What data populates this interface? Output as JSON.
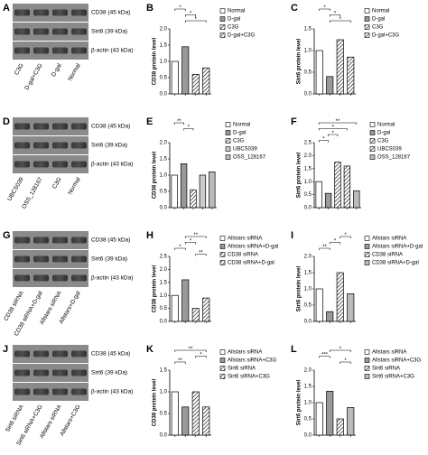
{
  "blots": [
    {
      "panel": "A",
      "bands": [
        "CD38 (45 kDa)",
        "Sirt6 (39 kDa)",
        "β-actin (43 kDa)"
      ],
      "lanes": [
        "C3G",
        "D-gal+C3G",
        "D-gal",
        "Normal"
      ]
    },
    {
      "panel": "D",
      "bands": [
        "CD38 (45 kDa)",
        "Sirt6 (39 kDa)",
        "β-actin (43 kDa)"
      ],
      "lanes": [
        "UBCS039",
        "OSS_128167",
        "C3G",
        "Normal"
      ]
    },
    {
      "panel": "G",
      "bands": [
        "CD38 (45 kDa)",
        "Sirt6 (39 kDa)",
        "β-actin (43 kDa)"
      ],
      "lanes": [
        "CD38 siRNA",
        "CD38 siRNA+D-gal",
        "Allstars siRNA",
        "Allstars+D-gal"
      ]
    },
    {
      "panel": "J",
      "bands": [
        "CD38 (45 kDa)",
        "Sirt6 (39 kDa)",
        "β-actin (43 kDa)"
      ],
      "lanes": [
        "Sirt6 siRNA",
        "Sirt6 siRNA+C3G",
        "Allstars siRNA",
        "Allstars+C3G"
      ]
    }
  ],
  "chart_data": [
    {
      "type": "bar",
      "panel": "B",
      "y_label": "CD38 protein level",
      "ylim": [
        0,
        2
      ],
      "yticks": [
        {
          "value": 0,
          "label": "0.0"
        },
        0.5,
        {
          "value": 1,
          "label": "1.0"
        },
        1.5,
        {
          "value": 2,
          "label": "2.0"
        }
      ],
      "series": [
        {
          "name": "Normal",
          "color": "#ffffff",
          "pattern": "none",
          "values": [
            1.0
          ]
        },
        {
          "name": "D-gal",
          "color": "#999999",
          "pattern": "none",
          "values": [
            1.45
          ]
        },
        {
          "name": "C3G",
          "color": "#ffffff",
          "pattern": "hatch",
          "values": [
            0.6
          ]
        },
        {
          "name": "D-gal+C3G",
          "color": "#ffffff",
          "pattern": "hatch",
          "values": [
            0.8
          ]
        }
      ],
      "significance": [
        {
          "from": 0,
          "to": 1,
          "label": "*"
        },
        {
          "from": 1,
          "to": 2,
          "label": "*"
        },
        {
          "from": 1,
          "to": 3,
          "label": "*"
        }
      ]
    },
    {
      "type": "bar",
      "panel": "C",
      "y_label": "Sirt6 protein level",
      "ylim": [
        0,
        1.5
      ],
      "yticks": [
        {
          "value": 0,
          "label": "0.0"
        },
        0.5,
        {
          "value": 1,
          "label": "1.0"
        },
        1.5
      ],
      "series": [
        {
          "name": "Normal",
          "color": "#ffffff",
          "pattern": "none",
          "values": [
            1.0
          ]
        },
        {
          "name": "D-gal",
          "color": "#999999",
          "pattern": "none",
          "values": [
            0.4
          ]
        },
        {
          "name": "C3G",
          "color": "#ffffff",
          "pattern": "hatch",
          "values": [
            1.25
          ]
        },
        {
          "name": "D-gal+C3G",
          "color": "#ffffff",
          "pattern": "hatch",
          "values": [
            0.85
          ]
        }
      ],
      "significance": [
        {
          "from": 0,
          "to": 1,
          "label": "*"
        },
        {
          "from": 1,
          "to": 2,
          "label": "*"
        },
        {
          "from": 1,
          "to": 3,
          "label": "*"
        }
      ]
    },
    {
      "type": "bar",
      "panel": "E",
      "y_label": "CD38 protein level",
      "ylim": [
        0,
        2
      ],
      "yticks": [
        {
          "value": 0,
          "label": "0.0"
        },
        0.5,
        {
          "value": 1,
          "label": "1.0"
        },
        1.5,
        {
          "value": 2,
          "label": "2.0"
        }
      ],
      "series": [
        {
          "name": "Normal",
          "color": "#ffffff",
          "pattern": "none",
          "values": [
            1.0
          ]
        },
        {
          "name": "D-gal",
          "color": "#999999",
          "pattern": "none",
          "values": [
            1.35
          ]
        },
        {
          "name": "C3G",
          "color": "#ffffff",
          "pattern": "hatch",
          "values": [
            0.55
          ]
        },
        {
          "name": "UBCS039",
          "color": "#cccccc",
          "pattern": "none",
          "values": [
            1.0
          ]
        },
        {
          "name": "OSS_128167",
          "color": "#bbbbbb",
          "pattern": "none",
          "values": [
            1.1
          ]
        }
      ],
      "significance": [
        {
          "from": 0,
          "to": 1,
          "label": "**"
        },
        {
          "from": 1,
          "to": 2,
          "label": "*"
        }
      ]
    },
    {
      "type": "bar",
      "panel": "F",
      "y_label": "Sirt6 protein level",
      "ylim": [
        0,
        2.5
      ],
      "yticks": [
        {
          "value": 0,
          "label": "0.0"
        },
        0.5,
        {
          "value": 1,
          "label": "1.0"
        },
        1.5,
        {
          "value": 2,
          "label": "2.0"
        },
        2.5
      ],
      "series": [
        {
          "name": "Normal",
          "color": "#ffffff",
          "pattern": "none",
          "values": [
            1.0
          ]
        },
        {
          "name": "D-gal",
          "color": "#999999",
          "pattern": "none",
          "values": [
            0.55
          ]
        },
        {
          "name": "C3G",
          "color": "#ffffff",
          "pattern": "hatch",
          "values": [
            1.75
          ]
        },
        {
          "name": "UBCS039",
          "color": "#ffffff",
          "pattern": "hatch",
          "values": [
            1.6
          ]
        },
        {
          "name": "OSS_128167",
          "color": "#bbbbbb",
          "pattern": "none",
          "values": [
            0.65
          ]
        }
      ],
      "significance": [
        {
          "from": 0,
          "to": 4,
          "label": "**"
        },
        {
          "from": 0,
          "to": 3,
          "label": "*"
        },
        {
          "from": 1,
          "to": 2,
          "label": "*"
        },
        {
          "from": 0,
          "to": 1,
          "label": "*"
        }
      ]
    },
    {
      "type": "bar",
      "panel": "H",
      "y_label": "CD38 protein level",
      "ylim": [
        0,
        2.5
      ],
      "yticks": [
        {
          "value": 0,
          "label": "0.0"
        },
        0.5,
        {
          "value": 1,
          "label": "1.0"
        },
        1.5,
        {
          "value": 2,
          "label": "2.0"
        },
        2.5
      ],
      "series": [
        {
          "name": "Allstars siRNA",
          "color": "#ffffff",
          "pattern": "none",
          "values": [
            1.0
          ]
        },
        {
          "name": "Allstars siRNA+D-gal",
          "color": "#999999",
          "pattern": "none",
          "values": [
            1.6
          ]
        },
        {
          "name": "CD38 siRNA",
          "color": "#ffffff",
          "pattern": "hatch",
          "values": [
            0.5
          ]
        },
        {
          "name": "CD38 siRNA+D-gal",
          "color": "#ffffff",
          "pattern": "hatch",
          "values": [
            0.9
          ]
        }
      ],
      "significance": [
        {
          "from": 1,
          "to": 3,
          "label": "**"
        },
        {
          "from": 1,
          "to": 2,
          "label": "*"
        },
        {
          "from": 0,
          "to": 1,
          "label": "*"
        },
        {
          "from": 2,
          "to": 3,
          "label": "**"
        }
      ]
    },
    {
      "type": "bar",
      "panel": "I",
      "y_label": "Sirt6 protein level",
      "ylim": [
        0,
        2
      ],
      "yticks": [
        {
          "value": 0,
          "label": "0.0"
        },
        0.5,
        {
          "value": 1,
          "label": "1.0"
        },
        1.5,
        {
          "value": 2,
          "label": "2.0"
        }
      ],
      "series": [
        {
          "name": "Allstars siRNA",
          "color": "#ffffff",
          "pattern": "none",
          "values": [
            1.0
          ]
        },
        {
          "name": "Allstars siRNA+D-gal",
          "color": "#999999",
          "pattern": "none",
          "values": [
            0.3
          ]
        },
        {
          "name": "CD38 siRNA",
          "color": "#ffffff",
          "pattern": "hatch",
          "values": [
            1.5
          ]
        },
        {
          "name": "CD38 siRNA+D-gal",
          "color": "#bbbbbb",
          "pattern": "none",
          "values": [
            0.85
          ]
        }
      ],
      "significance": [
        {
          "from": 2,
          "to": 3,
          "label": "*"
        },
        {
          "from": 1,
          "to": 2,
          "label": "*"
        },
        {
          "from": 0,
          "to": 1,
          "label": "**"
        }
      ]
    },
    {
      "type": "bar",
      "panel": "K",
      "y_label": "CD38 protein level",
      "ylim": [
        0,
        1.5
      ],
      "yticks": [
        {
          "value": 0,
          "label": "0.0"
        },
        0.5,
        {
          "value": 1,
          "label": "1.0"
        },
        1.5
      ],
      "series": [
        {
          "name": "Allstars siRNA",
          "color": "#ffffff",
          "pattern": "none",
          "values": [
            1.0
          ]
        },
        {
          "name": "Allstars siRNA+C3G",
          "color": "#999999",
          "pattern": "none",
          "values": [
            0.65
          ]
        },
        {
          "name": "Sirt6 siRNA",
          "color": "#ffffff",
          "pattern": "hatch",
          "values": [
            1.0
          ]
        },
        {
          "name": "Sirt6 siRNA+C3G",
          "color": "#ffffff",
          "pattern": "hatch",
          "values": [
            0.65
          ]
        }
      ],
      "significance": [
        {
          "from": 0,
          "to": 3,
          "label": "**"
        },
        {
          "from": 2,
          "to": 3,
          "label": "*"
        },
        {
          "from": 0,
          "to": 1,
          "label": "**"
        }
      ]
    },
    {
      "type": "bar",
      "panel": "L",
      "y_label": "Sirt6 protein level",
      "ylim": [
        0,
        2
      ],
      "yticks": [
        {
          "value": 0,
          "label": "0.0"
        },
        0.5,
        {
          "value": 1,
          "label": "1.0"
        },
        1.5,
        {
          "value": 2,
          "label": "2.0"
        }
      ],
      "series": [
        {
          "name": "Allstars siRNA",
          "color": "#ffffff",
          "pattern": "none",
          "values": [
            1.0
          ]
        },
        {
          "name": "Allstars siRNA+C3G",
          "color": "#999999",
          "pattern": "none",
          "values": [
            1.35
          ]
        },
        {
          "name": "Sirt6 siRNA",
          "color": "#ffffff",
          "pattern": "hatch",
          "values": [
            0.5
          ]
        },
        {
          "name": "Sirt6 siRNA+C3G",
          "color": "#bbbbbb",
          "pattern": "none",
          "values": [
            0.85
          ]
        }
      ],
      "significance": [
        {
          "from": 1,
          "to": 3,
          "label": "*"
        },
        {
          "from": 0,
          "to": 1,
          "label": "***"
        },
        {
          "from": 2,
          "to": 3,
          "label": "*"
        }
      ]
    }
  ]
}
